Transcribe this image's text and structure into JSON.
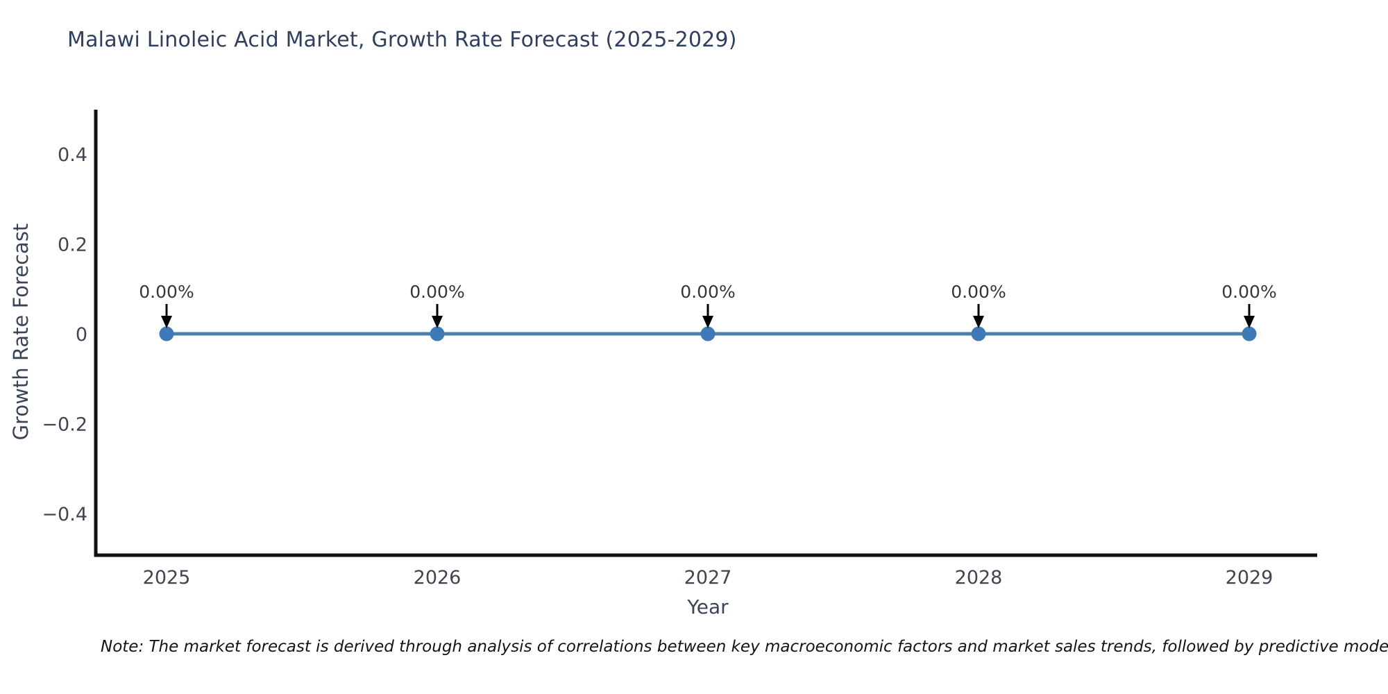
{
  "title": "Malawi Linoleic Acid Market, Growth Rate Forecast (2025-2029)",
  "note": "Note: The market forecast is derived through analysis of correlations between key macroeconomic factors and market sales trends, followed by predictive modeling to project future sa",
  "chart_data": {
    "type": "line",
    "title": "Malawi Linoleic Acid Market, Growth Rate Forecast (2025-2029)",
    "xlabel": "Year",
    "ylabel": "Growth Rate Forecast",
    "categories": [
      "2025",
      "2026",
      "2027",
      "2028",
      "2029"
    ],
    "series": [
      {
        "name": "Growth Rate Forecast",
        "values": [
          0,
          0,
          0,
          0,
          0
        ],
        "point_labels": [
          "0.00%",
          "0.00%",
          "0.00%",
          "0.00%",
          "0.00%"
        ]
      }
    ],
    "y_ticks": [
      0.4,
      0.2,
      0,
      -0.2,
      -0.4
    ],
    "y_tick_labels": [
      "0.4",
      "0.2",
      "0",
      "−0.2",
      "−0.4"
    ],
    "ylim": [
      -0.5,
      0.5
    ],
    "grid": false,
    "legend": "none",
    "annotation_style": "down-arrow-to-point",
    "colors": {
      "line": "#4d81ad",
      "marker": "#3f7ab8",
      "axis": "#111111",
      "arrow": "#000000",
      "title_text": "#2e3f5f",
      "axis_title_text": "#3b4559",
      "tick_text": "#3f4552",
      "annotation_text": "#33373b",
      "note_text": "#141414",
      "background": "#ffffff"
    }
  }
}
